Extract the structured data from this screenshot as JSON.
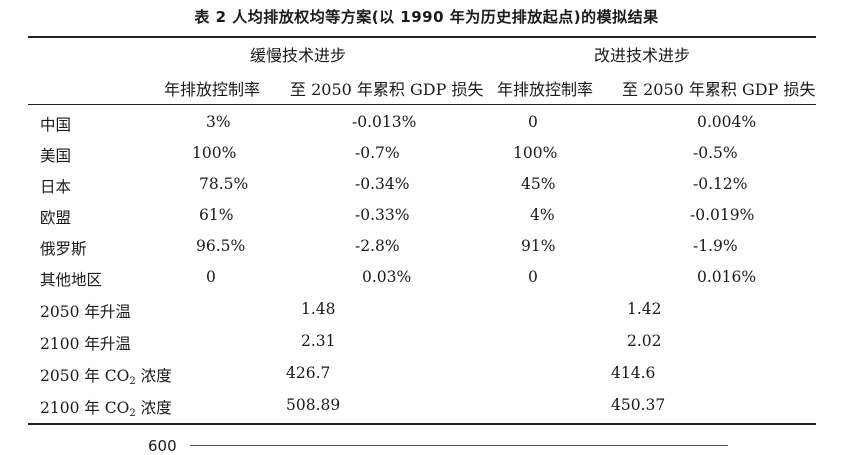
{
  "title": "表 2  人均排放权均等方案(以 1990 年为历史排放起点)的模拟结果",
  "groups": {
    "slow": "缓慢技术进步",
    "fast": "改进技术进步"
  },
  "columns": {
    "slow_rate": "年排放控制率",
    "slow_gdp": "至 2050 年累积 GDP 损失",
    "fast_rate": "年排放控制率",
    "fast_gdp": "至 2050 年累积 GDP 损失"
  },
  "rows": [
    {
      "label": "中国",
      "slow_rate": "3%",
      "slow_gdp": "-0.013%",
      "fast_rate": "0",
      "fast_gdp": "0.004%"
    },
    {
      "label": "美国",
      "slow_rate": "100%",
      "slow_gdp": "-0.7%",
      "fast_rate": "100%",
      "fast_gdp": "-0.5%"
    },
    {
      "label": "日本",
      "slow_rate": "78.5%",
      "slow_gdp": "-0.34%",
      "fast_rate": "45%",
      "fast_gdp": "-0.12%"
    },
    {
      "label": "欧盟",
      "slow_rate": "61%",
      "slow_gdp": "-0.33%",
      "fast_rate": "4%",
      "fast_gdp": "-0.019%"
    },
    {
      "label": "俄罗斯",
      "slow_rate": "96.5%",
      "slow_gdp": "-2.8%",
      "fast_rate": "91%",
      "fast_gdp": "-1.9%"
    },
    {
      "label": "其他地区",
      "slow_rate": "0",
      "slow_gdp": "0.03%",
      "fast_rate": "0",
      "fast_gdp": "0.016%"
    }
  ],
  "summary": [
    {
      "label": "2050 年升温",
      "slow": "1.48",
      "fast": "1.42"
    },
    {
      "label": "2100 年升温",
      "slow": "2.31",
      "fast": "2.02"
    },
    {
      "label_pre": "2050 年 CO",
      "label_sub": "2",
      "label_post": " 浓度",
      "slow": "426.7",
      "fast": "414.6"
    },
    {
      "label_pre": "2100 年 CO",
      "label_sub": "2",
      "label_post": " 浓度",
      "slow": "508.89",
      "fast": "450.37"
    }
  ],
  "next_figure": {
    "axis_tick": "600"
  }
}
